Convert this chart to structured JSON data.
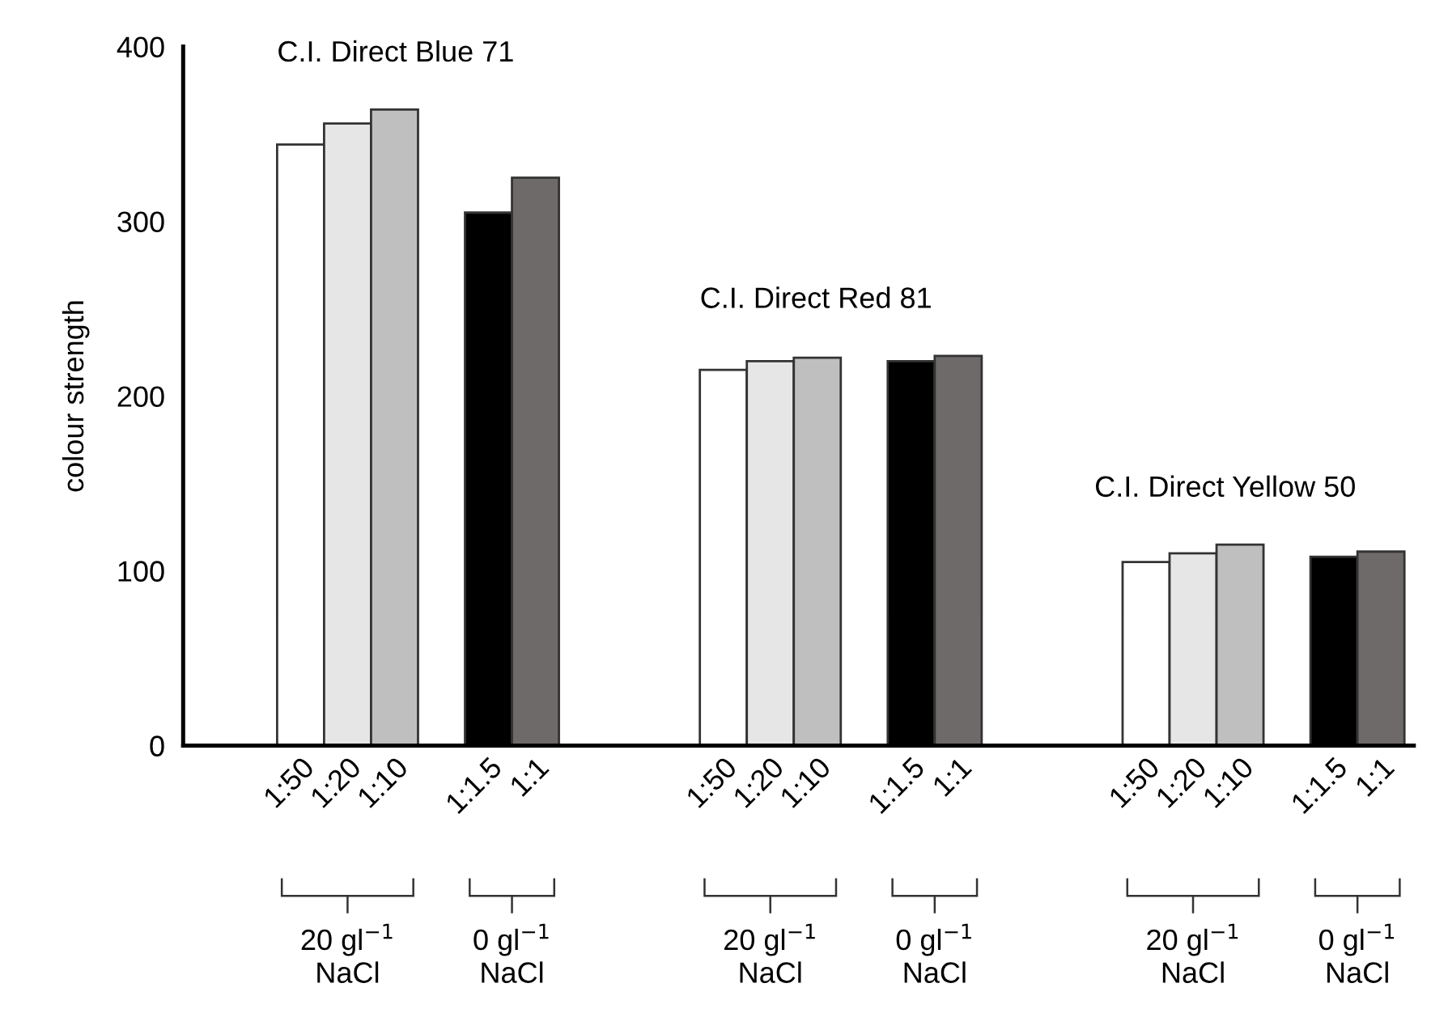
{
  "chart_data": {
    "type": "bar",
    "ylabel": "colour strength",
    "categories": [
      "1:50",
      "1:20",
      "1:10",
      null,
      "1:1.5",
      "1:1",
      null,
      null,
      null,
      "1:50",
      "1:20",
      "1:10",
      null,
      "1:1.5",
      "1:1",
      null,
      null,
      null,
      "1:50",
      "1:20",
      "1:10",
      null,
      "1:1.5",
      "1:1"
    ],
    "values": [
      344,
      356,
      364,
      null,
      305,
      325,
      null,
      null,
      null,
      215,
      220,
      222,
      null,
      220,
      223,
      null,
      null,
      null,
      105,
      110,
      115,
      null,
      108,
      111
    ],
    "colors": [
      "#ffffff",
      "#e6e6e6",
      "#bfbfbf",
      null,
      "#000000",
      "#6f6a6a",
      null,
      null,
      null,
      "#ffffff",
      "#e6e6e6",
      "#bfbfbf",
      null,
      "#000000",
      "#6f6a6a",
      null,
      null,
      null,
      "#ffffff",
      "#e6e6e6",
      "#bfbfbf",
      null,
      "#000000",
      "#6f6a6a"
    ],
    "ylim": [
      0,
      400
    ],
    "yticks": [
      0,
      100,
      200,
      300,
      400
    ],
    "grid": false,
    "legend": false,
    "annotations": [
      "C.I. Direct Blue 71",
      "C.I. Direct Red 81",
      "C.I. Direct Yellow 50",
      "20 gl$^{−1}$\nNaCl",
      "0 gl$^{−1}$\nNaCl",
      "20 gl$^{−1}$\nNaCl",
      "0 gl$^{−1}$\nNaCl",
      "20 gl$^{−1}$\nNaCl",
      "0 gl$^{−1}$\nNaCl"
    ]
  }
}
